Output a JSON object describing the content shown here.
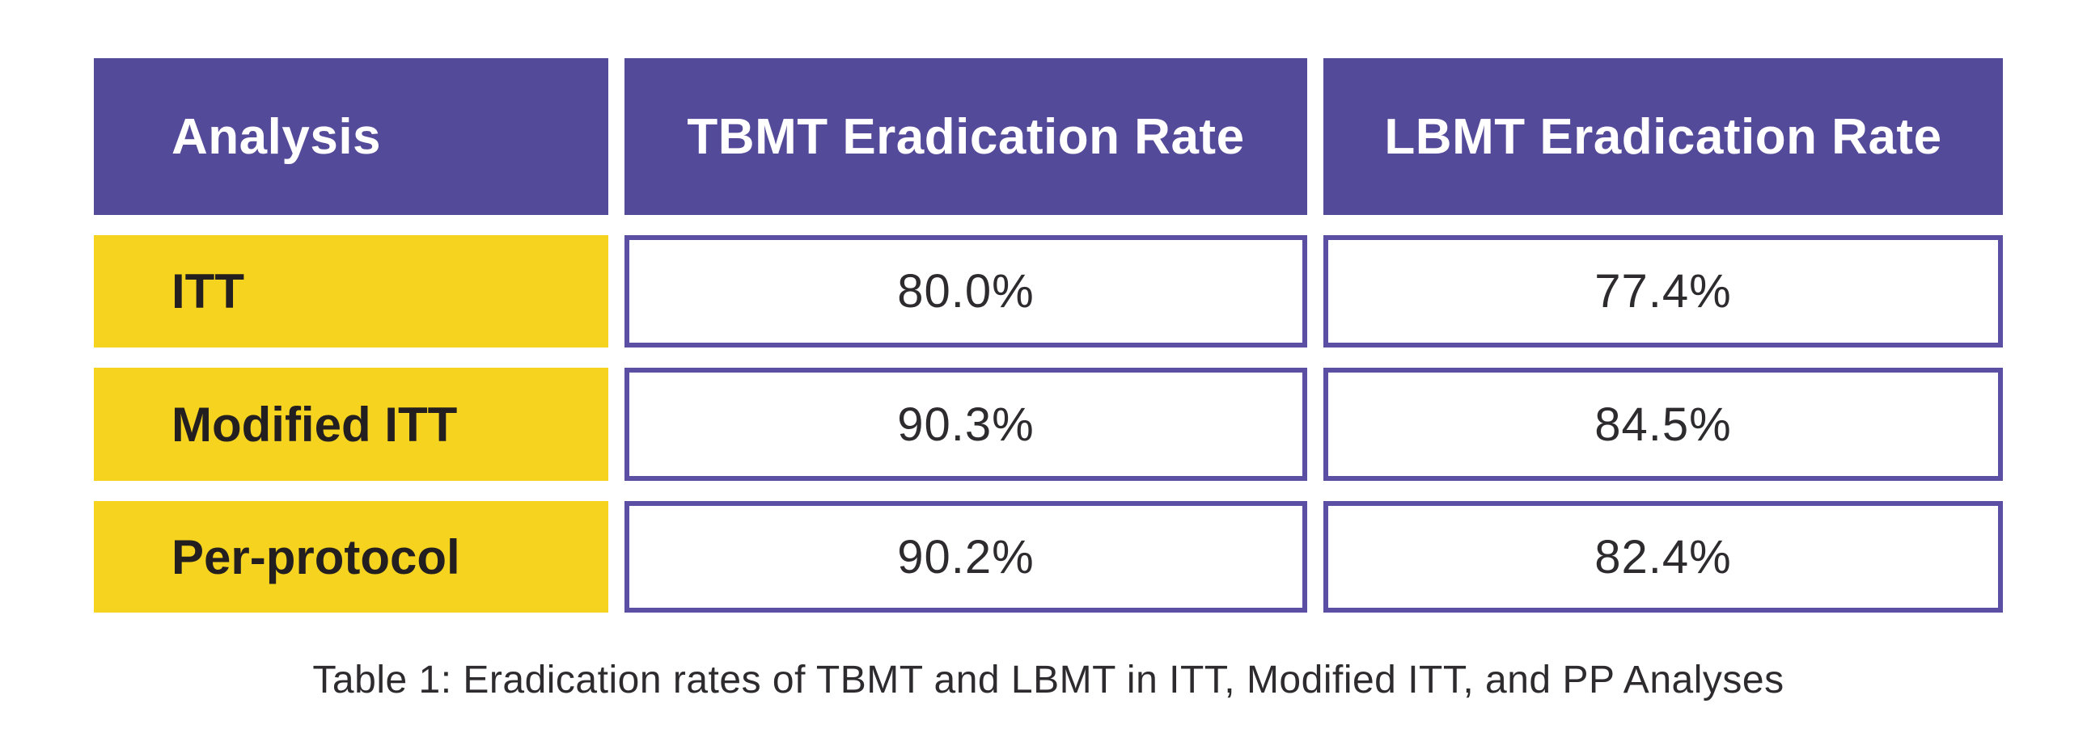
{
  "colors": {
    "header_bg": "#544a9a",
    "header_text": "#ffffff",
    "row_label_bg": "#f5d31f",
    "row_label_text": "#231f20",
    "value_cell_border": "#5a4fa3",
    "value_cell_bg": "#ffffff",
    "value_text": "#2e2b2f",
    "page_bg": "#ffffff"
  },
  "table": {
    "columns": [
      "Analysis",
      "TBMT Eradication Rate",
      "LBMT Eradication Rate"
    ],
    "rows": [
      {
        "analysis": "ITT",
        "tbmt": "80.0%",
        "lbmt": "77.4%"
      },
      {
        "analysis": "Modified ITT",
        "tbmt": "90.3%",
        "lbmt": "84.5%"
      },
      {
        "analysis": "Per-protocol",
        "tbmt": "90.2%",
        "lbmt": "82.4%"
      }
    ]
  },
  "caption": "Table 1: Eradication rates of TBMT and LBMT in ITT, Modified ITT, and PP Analyses",
  "chart_data": {
    "type": "table",
    "title": "Table 1: Eradication rates of TBMT and LBMT in ITT, Modified ITT, and PP Analyses",
    "columns": [
      "Analysis",
      "TBMT Eradication Rate",
      "LBMT Eradication Rate"
    ],
    "categories": [
      "ITT",
      "Modified ITT",
      "Per-protocol"
    ],
    "series": [
      {
        "name": "TBMT Eradication Rate",
        "values": [
          80.0,
          90.3,
          90.2
        ]
      },
      {
        "name": "LBMT Eradication Rate",
        "values": [
          77.4,
          84.5,
          82.4
        ]
      }
    ],
    "value_unit": "%"
  }
}
